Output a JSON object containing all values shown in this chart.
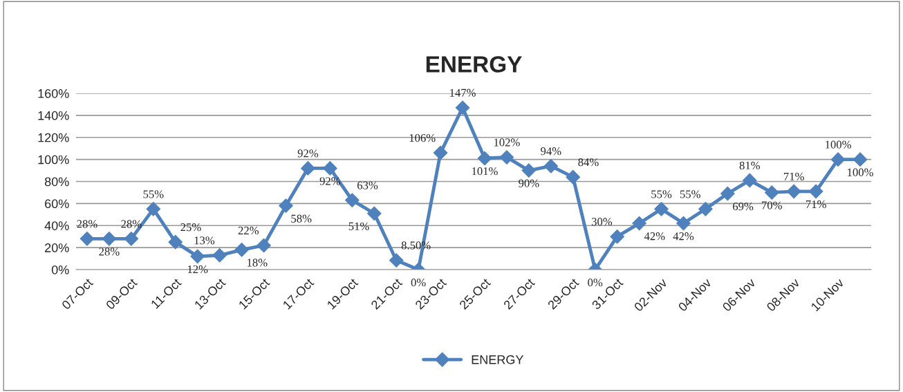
{
  "chart_data": {
    "type": "line",
    "title": "ENERGY",
    "categories": [
      "07-Oct",
      null,
      "09-Oct",
      null,
      "11-Oct",
      null,
      "13-Oct",
      null,
      "15-Oct",
      null,
      "17-Oct",
      null,
      "19-Oct",
      null,
      "21-Oct",
      null,
      "23-Oct",
      null,
      "25-Oct",
      null,
      "27-Oct",
      null,
      "29-Oct",
      null,
      "31-Oct",
      null,
      "02-Nov",
      null,
      "04-Nov",
      null,
      "06-Nov",
      null,
      "08-Nov",
      null,
      "10-Nov",
      null
    ],
    "series": [
      {
        "name": "ENERGY",
        "color": "#4f81bd",
        "values": [
          28,
          28,
          28,
          55,
          25,
          12,
          13,
          18,
          22,
          58,
          92,
          92,
          63,
          51,
          8.5,
          0,
          106,
          147,
          101,
          102,
          90,
          94,
          84,
          0,
          30,
          42,
          55,
          42,
          55,
          69,
          81,
          70,
          71,
          71,
          100,
          100
        ],
        "value_labels": [
          "28%",
          "28%",
          "28%",
          "55%",
          "25%",
          "12%",
          "13%",
          "18%",
          "22%",
          "58%",
          "92%",
          "92%",
          "63%",
          "51%",
          "8.50%",
          "0%",
          "106%",
          "147%",
          "101%",
          "102%",
          "90%",
          "94%",
          "84%",
          "0%",
          "30%",
          "42%",
          "55%",
          "42%",
          "55%",
          "69%",
          "81%",
          "70%",
          "71%",
          "71%",
          "100%",
          "100%"
        ]
      }
    ],
    "ylim": [
      0,
      160
    ],
    "yticks": [
      {
        "value": 0,
        "label": "0%"
      },
      {
        "value": 20,
        "label": "20%"
      },
      {
        "value": 40,
        "label": "40%"
      },
      {
        "value": 60,
        "label": "60%"
      },
      {
        "value": 80,
        "label": "80%"
      },
      {
        "value": 100,
        "label": "100%"
      },
      {
        "value": 120,
        "label": "120%"
      },
      {
        "value": 140,
        "label": "140%"
      },
      {
        "value": 160,
        "label": "160%"
      }
    ],
    "grid": "y",
    "legend": "bottom",
    "marker": "diamond",
    "line_style": "solid"
  }
}
